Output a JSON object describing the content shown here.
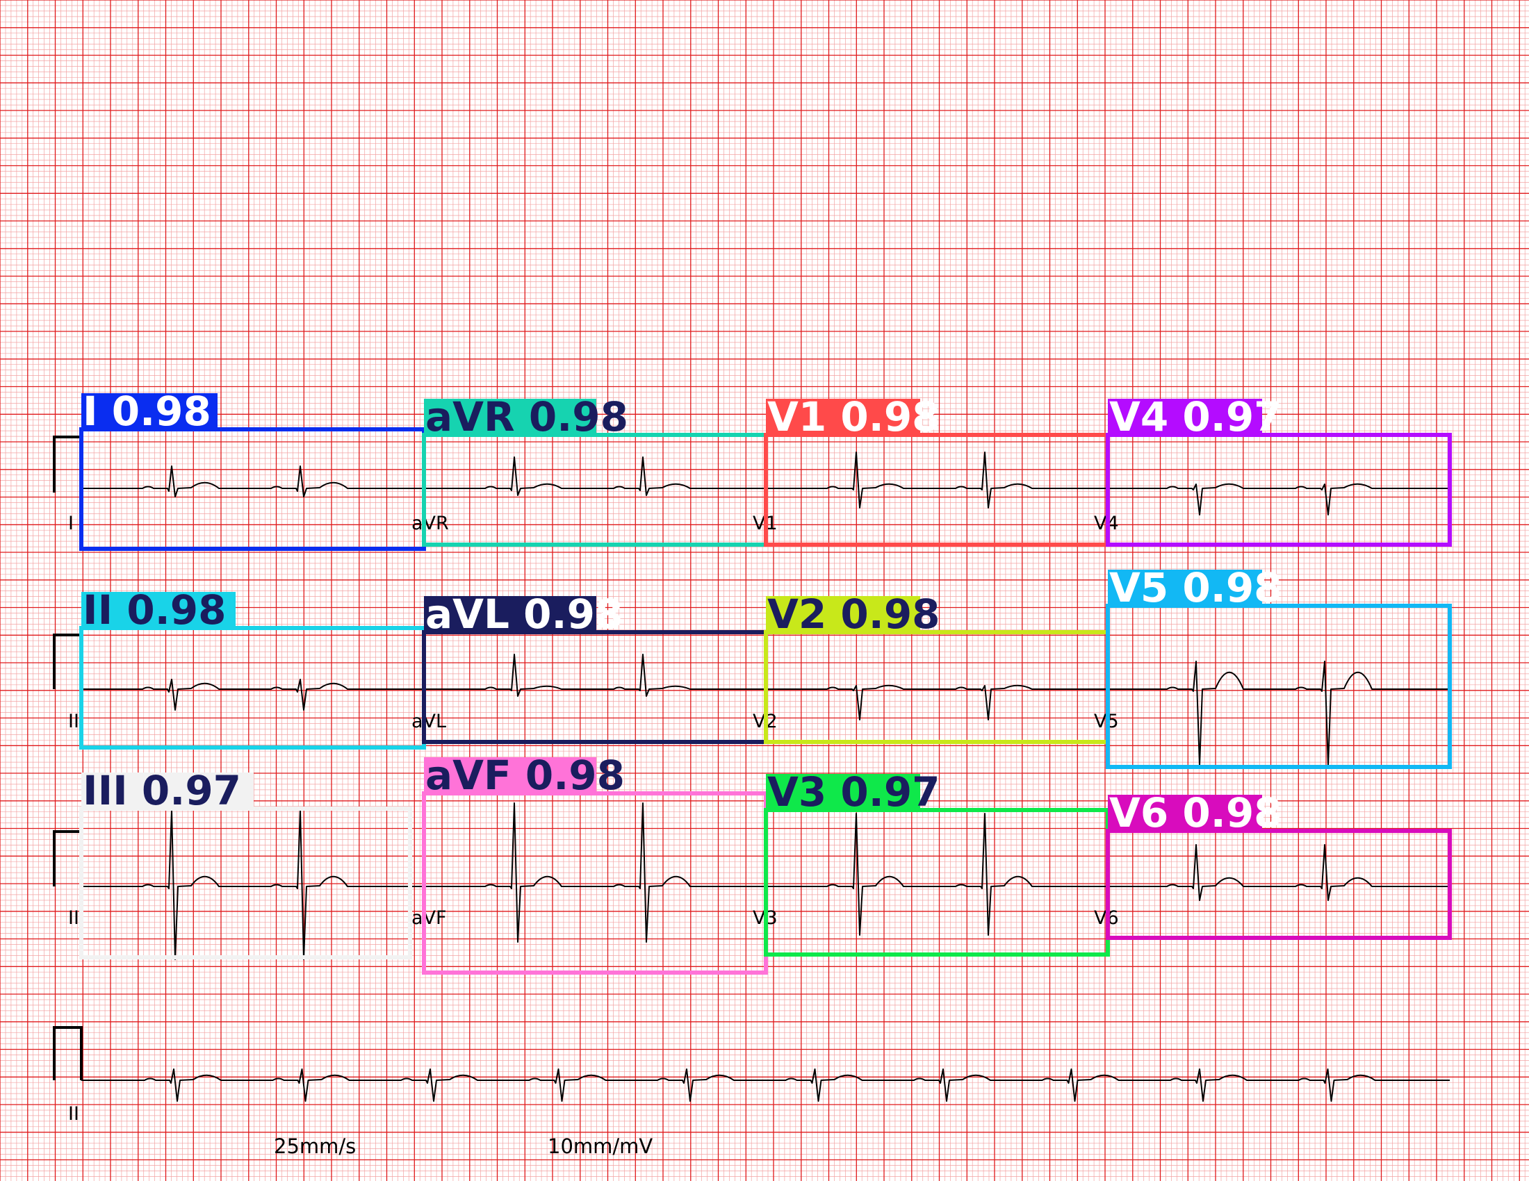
{
  "ecg": {
    "speed_label": "25mm/s",
    "gain_label": "10mm/mV",
    "rhythm_strip_label": "II",
    "lead_labels": [
      [
        "I",
        "aVR",
        "V1",
        "V4"
      ],
      [
        "II",
        "aVL",
        "V2",
        "V5"
      ],
      [
        "III",
        "aVF",
        "V3",
        "V6"
      ]
    ],
    "grid_colors": {
      "minor": "#f3a3a3",
      "major": "#e0191b"
    }
  },
  "detections": [
    {
      "name": "I",
      "label": "I 0.98",
      "score": 0.98,
      "color": "#0a2df0",
      "text_color": "#ffffff"
    },
    {
      "name": "aVR",
      "label": "aVR 0.98",
      "score": 0.98,
      "color": "#16d3b0",
      "text_color": "#1a1d5e"
    },
    {
      "name": "V1",
      "label": "V1 0.98",
      "score": 0.98,
      "color": "#ff4a4a",
      "text_color": "#ffffff"
    },
    {
      "name": "V4",
      "label": "V4 0.97",
      "score": 0.97,
      "color": "#b40cff",
      "text_color": "#ffffff"
    },
    {
      "name": "II",
      "label": "II 0.98",
      "score": 0.98,
      "color": "#19d3e8",
      "text_color": "#1a1d5e"
    },
    {
      "name": "aVL",
      "label": "aVL 0.98",
      "score": 0.98,
      "color": "#1a1d5e",
      "text_color": "#ffffff"
    },
    {
      "name": "V2",
      "label": "V2 0.98",
      "score": 0.98,
      "color": "#c8e81a",
      "text_color": "#1a1d5e"
    },
    {
      "name": "V5",
      "label": "V5 0.98",
      "score": 0.98,
      "color": "#12b8f4",
      "text_color": "#ffffff"
    },
    {
      "name": "III",
      "label": "III 0.97",
      "score": 0.97,
      "color": "#f2f2f2",
      "text_color": "#1a1d5e"
    },
    {
      "name": "aVF",
      "label": "aVF 0.98",
      "score": 0.98,
      "color": "#ff73d8",
      "text_color": "#1a1d5e"
    },
    {
      "name": "V3",
      "label": "V3 0.97",
      "score": 0.97,
      "color": "#0fe84a",
      "text_color": "#1a1d5e"
    },
    {
      "name": "V6",
      "label": "V6 0.98",
      "score": 0.98,
      "color": "#d80cbd",
      "text_color": "#ffffff"
    }
  ]
}
